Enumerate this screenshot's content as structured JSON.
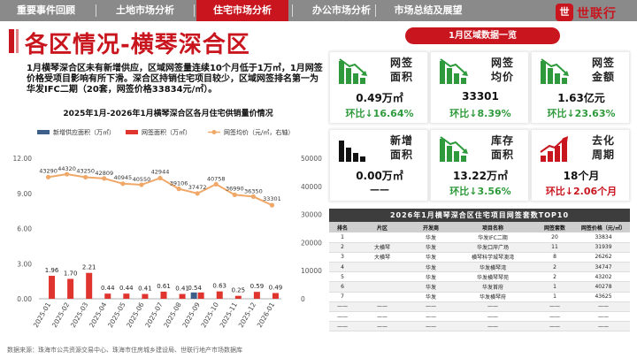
{
  "nav": {
    "tabs": [
      {
        "label": "重要事件回顾",
        "active": false
      },
      {
        "label": "土地市场分析",
        "active": false
      },
      {
        "label": "住宅市场分析",
        "active": true
      },
      {
        "label": "办公市场分析",
        "active": false
      },
      {
        "label": "市场总结及展望",
        "active": false
      }
    ],
    "logo_mark": "世",
    "logo_text": "世联行"
  },
  "page": {
    "title": "各区情况-横琴深合区",
    "summary": "1月横琴深合区未有新增供应，区域网签量连续10个月低于1万㎡，1月网签价格受项目影响有所下滑。深合区持销住宅项目较少，区域网签排名第一为华发IFC二期（20套，网签价格33834元/㎡）。",
    "sources": "数据来源：珠海市公共资源交易中心、珠海市住房城乡建设局、世联行地产市场数据库"
  },
  "chart_data": {
    "type": "bar",
    "title": "2025年1月-2026年1月横琴深合区各月住宅供销量价情况",
    "categories": [
      "2025-01",
      "2025-02",
      "2025-03",
      "2025-04",
      "2025-05",
      "2025-06",
      "2025-07",
      "2025-08",
      "2025-09",
      "2025-10",
      "2025-11",
      "2025-12",
      "2026-01"
    ],
    "series": [
      {
        "name": "新增供应面积（万㎡）",
        "kind": "bar",
        "axis": "left",
        "color": "#3e5f8a",
        "values": [
          0,
          0,
          0,
          0,
          0,
          0,
          0,
          0,
          0.54,
          0,
          0,
          0,
          0
        ],
        "labels": [
          "",
          "",
          "",
          "",
          "",
          "",
          "",
          "",
          "0.54",
          "",
          "",
          "",
          ""
        ]
      },
      {
        "name": "网签面积（万㎡）",
        "kind": "bar",
        "axis": "left",
        "color": "#e0342f",
        "values": [
          1.96,
          1.7,
          2.21,
          0.44,
          0.44,
          0.41,
          0.61,
          0.41,
          0.54,
          0.63,
          0.25,
          0.59,
          0.49
        ],
        "labels": [
          "1.96",
          "1.70",
          "2.21",
          "0.44",
          "0.44",
          "0.41",
          "0.61",
          "0.41",
          "",
          "0.63",
          "0.25",
          "0.59",
          "0.49"
        ]
      },
      {
        "name": "网签均价（元/㎡，右轴）",
        "kind": "line",
        "axis": "right",
        "color": "#f0a868",
        "values": [
          43290,
          44320,
          43250,
          42809,
          40945,
          40550,
          42944,
          39106,
          37472,
          40758,
          36990,
          36350,
          33301
        ],
        "labels": [
          "43290",
          "44320",
          "43250",
          "42809",
          "40945",
          "40550",
          "42944",
          "39106",
          "37472",
          "40758",
          "36990",
          "36350",
          "33301"
        ]
      }
    ],
    "left_axis": {
      "min": 0,
      "max": 12,
      "ticks": [
        "0.00",
        "3.00",
        "6.00",
        "9.00",
        "12.00"
      ]
    },
    "right_axis": {
      "min": 0,
      "max": 50000,
      "ticks": [
        "0",
        "10000",
        "20000",
        "30000",
        "40000",
        "50000"
      ]
    },
    "legend_position": "top",
    "grid": false
  },
  "region": {
    "header": "1月区域数据一览",
    "kpis": [
      {
        "label": "网签面积",
        "value": "0.49万㎡",
        "change": "环比↓16.64%",
        "tone": "green",
        "icon": "bar-down-icon"
      },
      {
        "label": "网签均价",
        "value": "33301",
        "change": "环比↓8.39%",
        "tone": "green",
        "icon": "bar-down-icon"
      },
      {
        "label": "网签金额",
        "value": "1.63亿元",
        "change": "环比↓23.63%",
        "tone": "green",
        "icon": "bar-down-icon"
      },
      {
        "label": "新增面积",
        "value": "0.00万㎡",
        "change": "——",
        "tone": "dash",
        "icon": "bar-flat-icon"
      },
      {
        "label": "库存面积",
        "value": "13.22万㎡",
        "change": "环比↓3.56%",
        "tone": "green",
        "icon": "bar-down-icon"
      },
      {
        "label": "去化周期",
        "value": "18个月",
        "change": "环比↓2.06个月",
        "tone": "red",
        "icon": "bar-up-icon"
      }
    ]
  },
  "rank_table": {
    "title": "2026年1月横琴深合区住宅项目网签套数TOP10",
    "headers": [
      "排名",
      "片区",
      "开发商",
      "项目名称",
      "网签套数",
      "网签价格（元/㎡）"
    ],
    "rows": [
      [
        "1",
        "",
        "华发",
        "华发IFC二期",
        "20",
        "33834"
      ],
      [
        "2",
        "大横琴",
        "华发",
        "华发口岸广场",
        "11",
        "31939"
      ],
      [
        "3",
        "大横琴",
        "华发",
        "横琴科学城琴澳湾",
        "8",
        "26262"
      ],
      [
        "4",
        "",
        "华发",
        "华发横琴湾",
        "2",
        "34747"
      ],
      [
        "5",
        "",
        "华发",
        "华发横琴琴苑",
        "2",
        "43202"
      ],
      [
        "6",
        "",
        "华发",
        "华发首府",
        "1",
        "40278"
      ],
      [
        "7",
        "",
        "华发",
        "华发横琴府",
        "1",
        "43625"
      ],
      [
        "——",
        "——",
        "——",
        "——",
        "——",
        "——"
      ],
      [
        "——",
        "——",
        "——",
        "——",
        "——",
        "——"
      ],
      [
        "——",
        "——",
        "——",
        "——",
        "——",
        "——"
      ]
    ]
  },
  "colors": {
    "accent": "#c9151e",
    "up_green": "#2e9a3b",
    "nav_gray": "#8a8a8a"
  }
}
